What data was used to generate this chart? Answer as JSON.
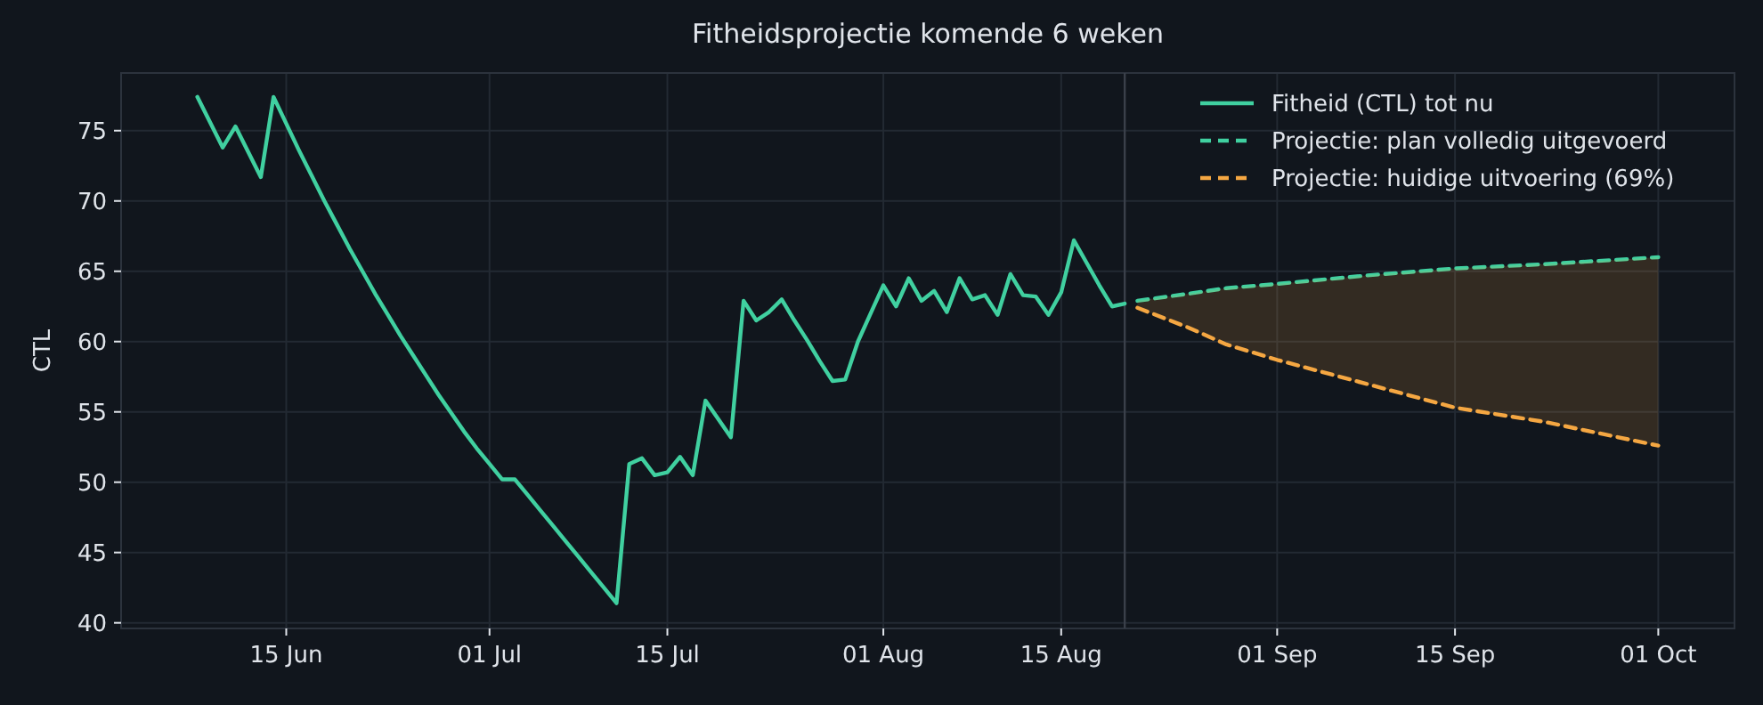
{
  "chart_data": {
    "type": "line",
    "title": "Fitheidsprojectie komende 6 weken",
    "ylabel": "CTL",
    "xlim": [
      "--06-02",
      "--10-07"
    ],
    "ylim": [
      39.6,
      79.1
    ],
    "xticks": [
      {
        "value": "--06-15",
        "label": "15 Jun"
      },
      {
        "value": "--07-01",
        "label": "01 Jul"
      },
      {
        "value": "--07-15",
        "label": "15 Jul"
      },
      {
        "value": "--08-01",
        "label": "01 Aug"
      },
      {
        "value": "--08-15",
        "label": "15 Aug"
      },
      {
        "value": "--09-01",
        "label": "01 Sep"
      },
      {
        "value": "--09-15",
        "label": "15 Sep"
      },
      {
        "value": "--10-01",
        "label": "01 Oct"
      }
    ],
    "yticks": [
      40,
      45,
      50,
      55,
      60,
      65,
      70,
      75
    ],
    "grid": true,
    "legend": "top right",
    "marker": "none",
    "ref_lines": [
      {
        "axis": "x",
        "value": "--08-20",
        "color": "#3a404a"
      }
    ],
    "series": [
      {
        "name": "Fitheid (CTL) tot nu",
        "color": "#40d0a0",
        "line_style": "solid",
        "x": [
          "--06-08",
          "--06-10",
          "--06-11",
          "--06-13",
          "--06-14",
          "--06-15",
          "--06-16",
          "--06-17",
          "--06-18",
          "--06-19",
          "--06-20",
          "--06-21",
          "--06-22",
          "--06-23",
          "--06-24",
          "--06-25",
          "--06-26",
          "--06-27",
          "--06-28",
          "--06-29",
          "--06-30",
          "--07-01",
          "--07-02",
          "--07-03",
          "--07-04",
          "--07-05",
          "--07-06",
          "--07-07",
          "--07-08",
          "--07-09",
          "--07-10",
          "--07-11",
          "--07-12",
          "--07-13",
          "--07-14",
          "--07-15",
          "--07-16",
          "--07-17",
          "--07-18",
          "--07-20",
          "--07-21",
          "--07-22",
          "--07-23",
          "--07-24",
          "--07-25",
          "--07-26",
          "--07-27",
          "--07-28",
          "--07-29",
          "--07-30",
          "--07-31",
          "--08-01",
          "--08-02",
          "--08-03",
          "--08-04",
          "--08-05",
          "--08-06",
          "--08-07",
          "--08-08",
          "--08-09",
          "--08-10",
          "--08-11",
          "--08-12",
          "--08-13",
          "--08-14",
          "--08-15",
          "--08-16",
          "--08-17",
          "--08-18",
          "--08-19",
          "--08-20"
        ],
        "values": [
          77.4,
          73.8,
          75.3,
          71.7,
          77.4,
          75.5,
          73.6,
          71.8,
          70.0,
          68.3,
          66.6,
          65.0,
          63.4,
          61.9,
          60.4,
          59.0,
          57.6,
          56.2,
          54.9,
          53.6,
          52.4,
          51.3,
          50.2,
          50.2,
          49.1,
          48.0,
          46.9,
          45.8,
          44.7,
          43.6,
          42.5,
          41.4,
          51.3,
          51.7,
          50.5,
          50.7,
          51.8,
          50.5,
          55.8,
          53.2,
          62.9,
          61.5,
          62.1,
          63.0,
          61.5,
          60.1,
          58.6,
          57.2,
          57.3,
          60.0,
          62.0,
          64.0,
          62.5,
          64.5,
          62.9,
          63.6,
          62.1,
          64.5,
          63.0,
          63.3,
          61.9,
          64.8,
          63.3,
          63.2,
          61.9,
          63.5,
          67.2,
          65.6,
          64.0,
          62.5,
          62.7
        ]
      },
      {
        "name": "Projectie: plan volledig uitgevoerd",
        "color": "#40d0a0",
        "line_style": "dashed",
        "x": [
          "--08-21",
          "--08-25",
          "--08-28",
          "--09-01",
          "--09-08",
          "--09-15",
          "--09-22",
          "--10-01"
        ],
        "values": [
          62.9,
          63.4,
          63.8,
          64.1,
          64.7,
          65.2,
          65.5,
          66.0
        ]
      },
      {
        "name": "Projectie: huidige uitvoering (69%)",
        "color": "#f5a742",
        "line_style": "dashed",
        "x": [
          "--08-21",
          "--08-25",
          "--08-28",
          "--09-01",
          "--09-08",
          "--09-15",
          "--09-22",
          "--10-01"
        ],
        "values": [
          62.4,
          61.0,
          59.8,
          58.7,
          57.0,
          55.3,
          54.3,
          52.6
        ],
        "lower": [
          62.4,
          61.0,
          59.8,
          58.7,
          57.0,
          55.3,
          54.3,
          52.6
        ],
        "upper": [
          62.9,
          63.4,
          63.8,
          64.1,
          64.7,
          65.2,
          65.5,
          66.0
        ]
      }
    ]
  }
}
